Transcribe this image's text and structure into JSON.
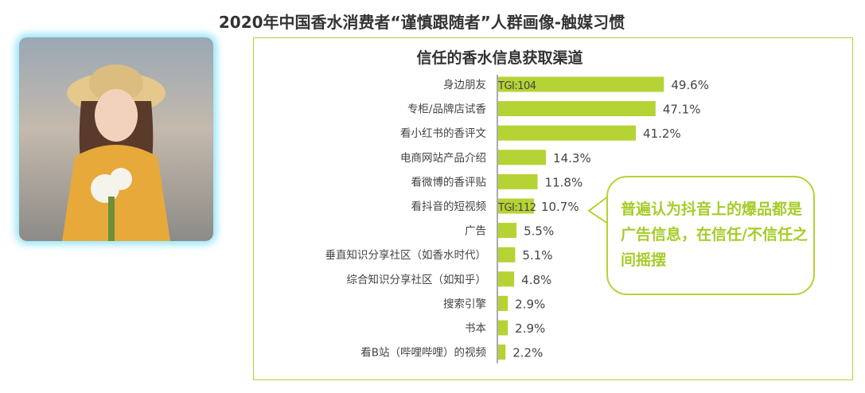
{
  "title": "2020年中国香水消费者“谨慎跟随者”人群画像-触媒习惯",
  "callout": "普遍认为抖音上的爆品都是广告信息，在信任/不信任之间摇摆",
  "colors": {
    "bar": "#b5d334",
    "accent_text": "#a6cc2a",
    "photo_glow": "#8fe3f7"
  },
  "chart_data": {
    "type": "bar",
    "orientation": "horizontal",
    "title": "信任的香水信息获取渠道",
    "categories": [
      "身边朋友",
      "专柜/品牌店试香",
      "看小红书的香评文",
      "电商网站产品介绍",
      "看微博的香评贴",
      "看抖音的短视频",
      "广告",
      "垂直知识分享社区（如香水时代）",
      "综合知识分享社区（如知乎）",
      "搜索引擎",
      "书本",
      "看B站（哔哩哔哩）的视频"
    ],
    "values": [
      49.6,
      47.1,
      41.2,
      14.3,
      11.8,
      10.7,
      5.5,
      5.1,
      4.8,
      2.9,
      2.9,
      2.2
    ],
    "value_labels": [
      "49.6%",
      "47.1%",
      "41.2%",
      "14.3%",
      "11.8%",
      "10.7%",
      "5.5%",
      "5.1%",
      "4.8%",
      "2.9%",
      "2.9%",
      "2.2%"
    ],
    "tgi_labels": {
      "0": "TGI:104",
      "5": "TGI:112"
    },
    "grid": false
  }
}
